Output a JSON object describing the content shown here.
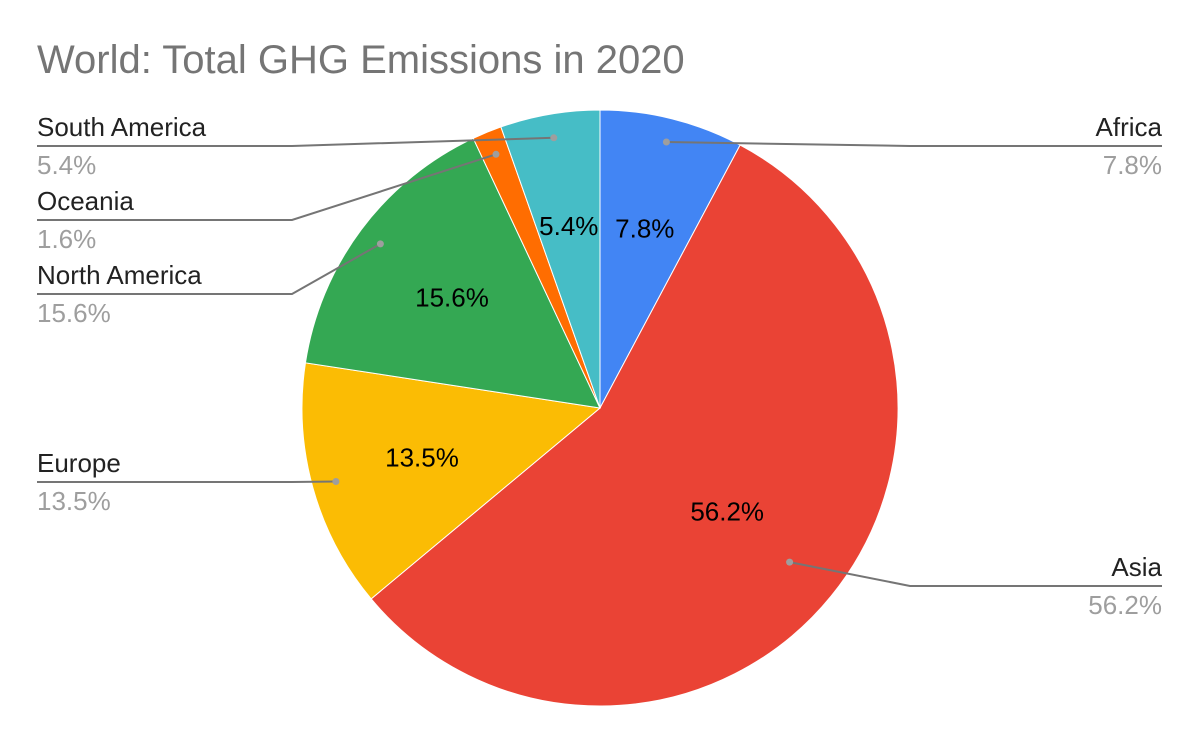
{
  "chart_data": {
    "type": "pie",
    "title": "World: Total GHG Emissions in 2020",
    "slices": [
      {
        "name": "Africa",
        "value": 7.8,
        "label": "7.8%",
        "color": "#4285f4"
      },
      {
        "name": "Asia",
        "value": 56.2,
        "label": "56.2%",
        "color": "#ea4335"
      },
      {
        "name": "Europe",
        "value": 13.5,
        "label": "13.5%",
        "color": "#fbbc04"
      },
      {
        "name": "North America",
        "value": 15.6,
        "label": "15.6%",
        "color": "#34a853"
      },
      {
        "name": "Oceania",
        "value": 1.6,
        "label": "1.6%",
        "color": "#ff6d01"
      },
      {
        "name": "South America",
        "value": 5.4,
        "label": "5.4%",
        "color": "#46bdc6"
      }
    ],
    "start_angle_deg": 0,
    "direction": "clockwise",
    "legend": "labeled leader lines"
  }
}
